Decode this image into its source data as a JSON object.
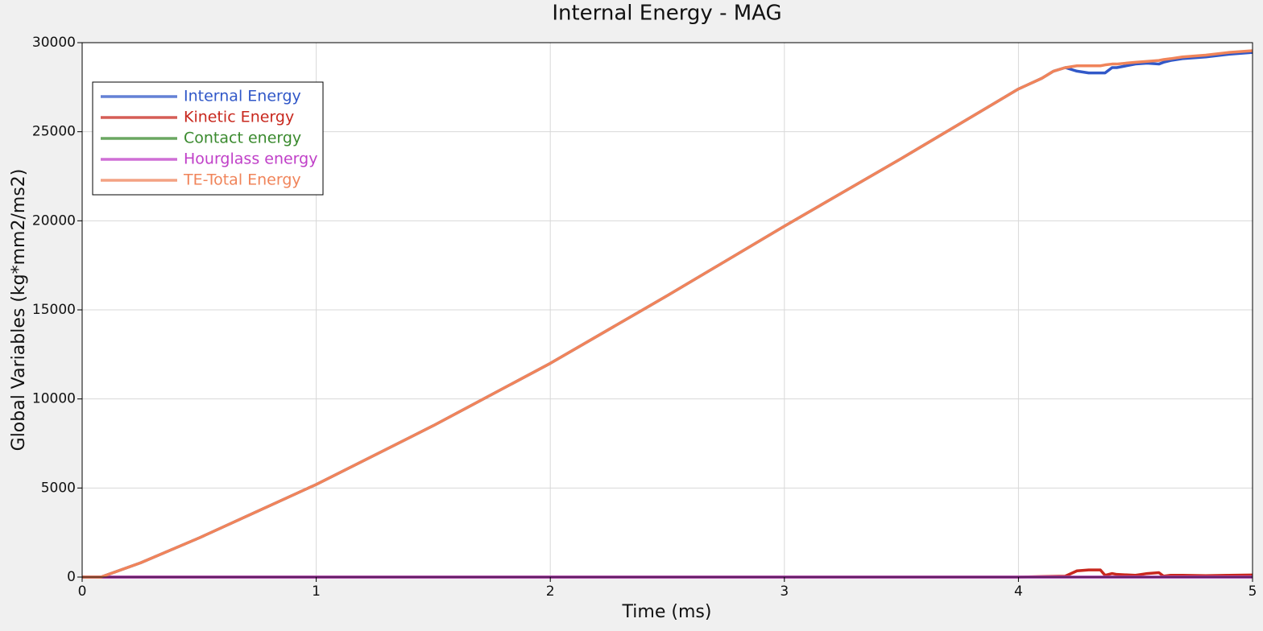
{
  "chart_data": {
    "type": "line",
    "title": "Internal Energy - MAG",
    "x_label": "Time (ms)",
    "y_label": "Global Variables (kg*mm2/ms2)",
    "x": [
      0,
      0.08,
      0.25,
      0.5,
      1,
      1.5,
      2,
      2.5,
      3,
      3.5,
      4,
      4.1,
      4.15,
      4.2,
      4.25,
      4.3,
      4.35,
      4.37,
      4.4,
      4.42,
      4.5,
      4.55,
      4.6,
      4.62,
      4.65,
      4.7,
      4.8,
      4.9,
      5
    ],
    "series": [
      {
        "name": "Internal Energy",
        "color": "#3158c8",
        "values": [
          0,
          0,
          800,
          2200,
          5200,
          8500,
          12000,
          15800,
          19700,
          23500,
          27400,
          28000,
          28400,
          28600,
          28400,
          28300,
          28300,
          28300,
          28600,
          28600,
          28800,
          28850,
          28800,
          28900,
          29000,
          29100,
          29200,
          29350,
          29450
        ]
      },
      {
        "name": "Kinetic Energy",
        "color": "#c8281e",
        "values": [
          0,
          0,
          0,
          0,
          0,
          0,
          0,
          0,
          0,
          0,
          0,
          30,
          40,
          50,
          350,
          400,
          400,
          100,
          200,
          150,
          100,
          200,
          250,
          50,
          100,
          100,
          80,
          100,
          120
        ]
      },
      {
        "name": "Contact energy",
        "color": "#3a8a2e",
        "values": [
          0,
          0,
          0,
          0,
          0,
          0,
          0,
          0,
          0,
          0,
          0,
          0,
          0,
          0,
          0,
          0,
          0,
          0,
          0,
          0,
          0,
          0,
          0,
          0,
          0,
          0,
          0,
          0,
          0
        ]
      },
      {
        "name": "Hourglass energy",
        "color": "#c040c8",
        "values": [
          0,
          0,
          0,
          0,
          0,
          0,
          0,
          0,
          0,
          0,
          0,
          0,
          0,
          0,
          0,
          0,
          0,
          0,
          0,
          0,
          0,
          0,
          0,
          0,
          0,
          0,
          0,
          0,
          0
        ]
      },
      {
        "name": "TE-Total Energy",
        "color": "#f0845a",
        "values": [
          0,
          0,
          800,
          2200,
          5200,
          8500,
          12000,
          15800,
          19700,
          23500,
          27400,
          28000,
          28400,
          28600,
          28700,
          28700,
          28700,
          28750,
          28800,
          28800,
          28900,
          28950,
          29000,
          29050,
          29100,
          29200,
          29300,
          29450,
          29550
        ]
      }
    ],
    "xlim": [
      0,
      5
    ],
    "xticks": [
      0,
      1,
      2,
      3,
      4,
      5
    ],
    "ylim": [
      0,
      30000
    ],
    "yticks": [
      0,
      5000,
      10000,
      15000,
      20000,
      25000,
      30000
    ],
    "grid": true,
    "legend_position": "upper-left"
  }
}
